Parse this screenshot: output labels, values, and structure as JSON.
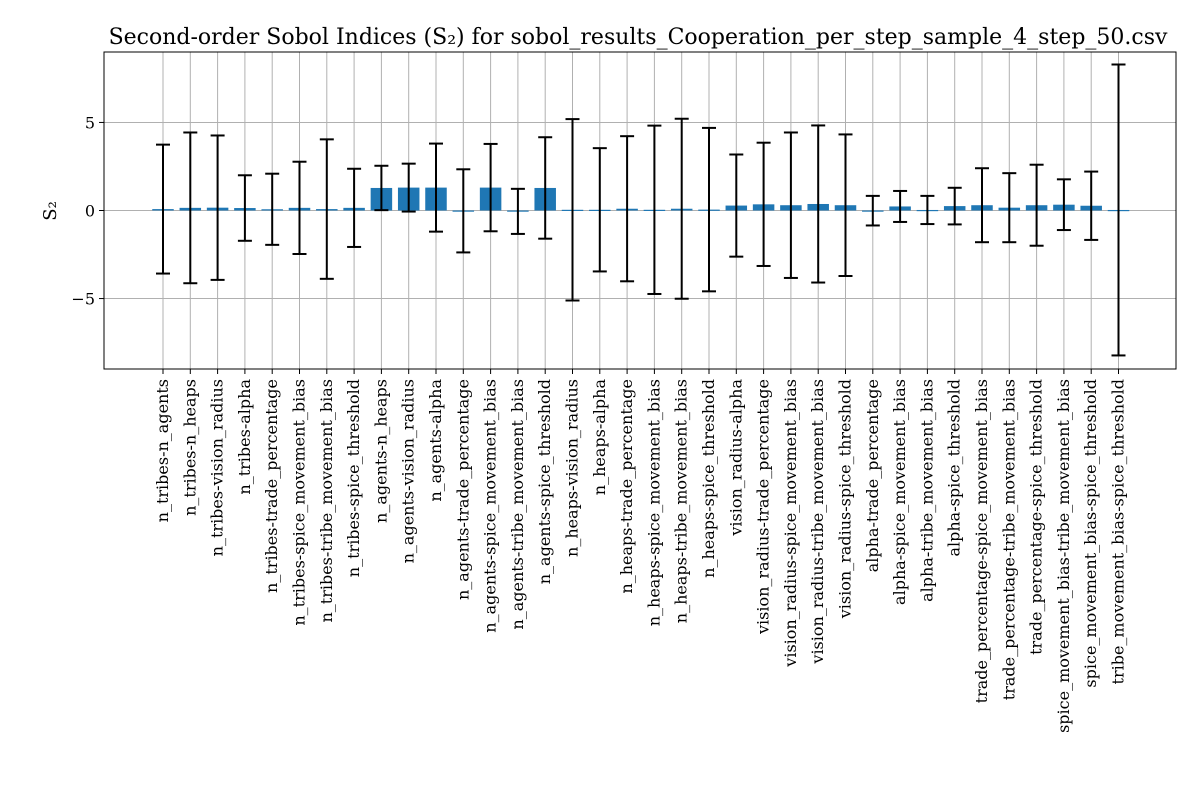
{
  "chart_data": {
    "type": "bar",
    "title": "Second-order Sobol Indices (S₂) for sobol_results_Cooperation_per_step_sample_4_step_50.csv",
    "xlabel": "",
    "ylabel": "S₂",
    "ylim": [
      -9.0,
      9.0
    ],
    "yticks": [
      {
        "value": -5,
        "label": "−5"
      },
      {
        "value": 0,
        "label": "0"
      },
      {
        "value": 5,
        "label": "5"
      }
    ],
    "grid": true,
    "bar_color": "#1f77b4",
    "categories": [
      "n_tribes-n_agents",
      "n_tribes-n_heaps",
      "n_tribes-vision_radius",
      "n_tribes-alpha",
      "n_tribes-trade_percentage",
      "n_tribes-spice_movement_bias",
      "n_tribes-tribe_movement_bias",
      "n_tribes-spice_threshold",
      "n_agents-n_heaps",
      "n_agents-vision_radius",
      "n_agents-alpha",
      "n_agents-trade_percentage",
      "n_agents-spice_movement_bias",
      "n_agents-tribe_movement_bias",
      "n_agents-spice_threshold",
      "n_heaps-vision_radius",
      "n_heaps-alpha",
      "n_heaps-trade_percentage",
      "n_heaps-spice_movement_bias",
      "n_heaps-tribe_movement_bias",
      "n_heaps-spice_threshold",
      "vision_radius-alpha",
      "vision_radius-trade_percentage",
      "vision_radius-spice_movement_bias",
      "vision_radius-tribe_movement_bias",
      "vision_radius-spice_threshold",
      "alpha-trade_percentage",
      "alpha-spice_movement_bias",
      "alpha-tribe_movement_bias",
      "alpha-spice_threshold",
      "trade_percentage-spice_movement_bias",
      "trade_percentage-tribe_movement_bias",
      "trade_percentage-spice_threshold",
      "spice_movement_bias-tribe_movement_bias",
      "spice_movement_bias-spice_threshold",
      "tribe_movement_bias-spice_threshold"
    ],
    "values": [
      0.08,
      0.15,
      0.16,
      0.14,
      0.07,
      0.15,
      0.08,
      0.15,
      1.28,
      1.3,
      1.3,
      -0.02,
      1.3,
      -0.05,
      1.28,
      0.04,
      0.04,
      0.1,
      0.04,
      0.1,
      0.05,
      0.28,
      0.35,
      0.3,
      0.37,
      0.3,
      -0.01,
      0.23,
      0.03,
      0.25,
      0.3,
      0.16,
      0.3,
      0.33,
      0.27,
      0.03
    ],
    "errors": [
      3.66,
      4.28,
      4.1,
      1.86,
      2.02,
      2.62,
      3.96,
      2.22,
      1.26,
      1.36,
      2.5,
      2.36,
      2.48,
      1.28,
      2.88,
      5.15,
      3.5,
      4.12,
      4.78,
      5.11,
      4.64,
      2.9,
      3.5,
      4.13,
      4.46,
      4.02,
      0.84,
      0.88,
      0.8,
      1.04,
      2.1,
      1.96,
      2.3,
      1.44,
      1.94,
      8.26
    ]
  }
}
